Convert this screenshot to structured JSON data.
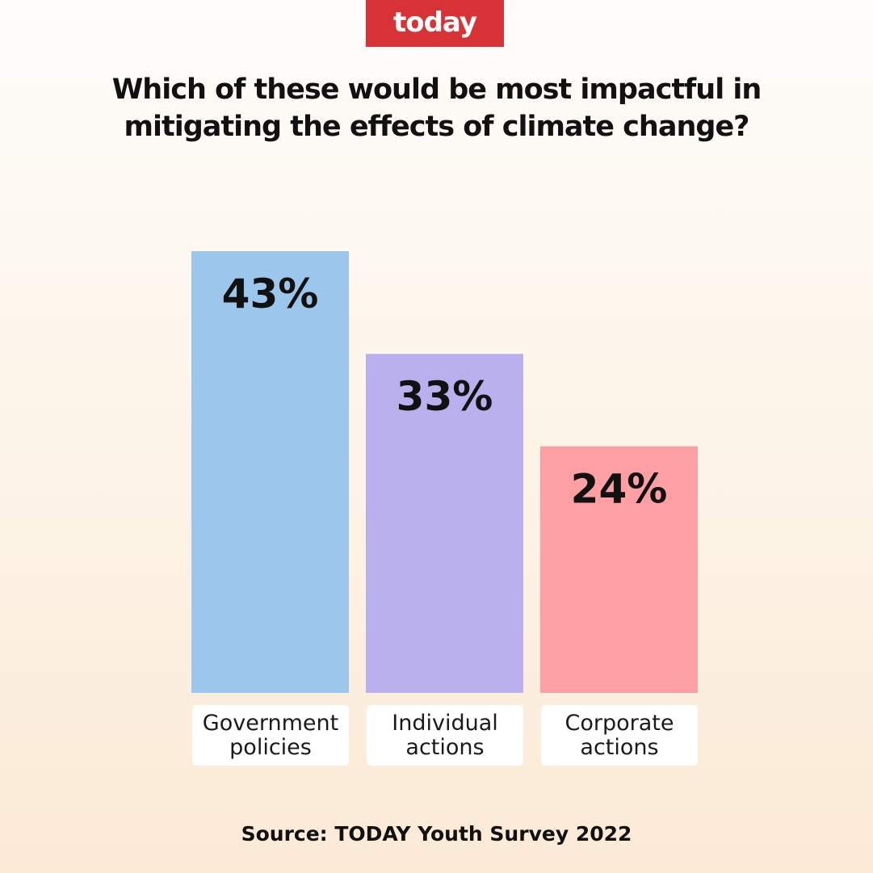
{
  "logo": {
    "text": "today",
    "color": "#d73337"
  },
  "chart_data": {
    "type": "bar",
    "title": "Which of these would be most impactful in mitigating the effects of climate change?",
    "categories": [
      "Government policies",
      "Individual actions",
      "Corporate actions"
    ],
    "values": [
      43,
      33,
      24
    ],
    "value_labels": [
      "43%",
      "33%",
      "24%"
    ],
    "colors": [
      "#9dc6ec",
      "#bbb0ee",
      "#fd9fa3"
    ],
    "ylim": [
      0,
      43
    ],
    "grid": false,
    "legend": "none"
  },
  "footer": {
    "source": "Source: TODAY Youth Survey 2022"
  }
}
